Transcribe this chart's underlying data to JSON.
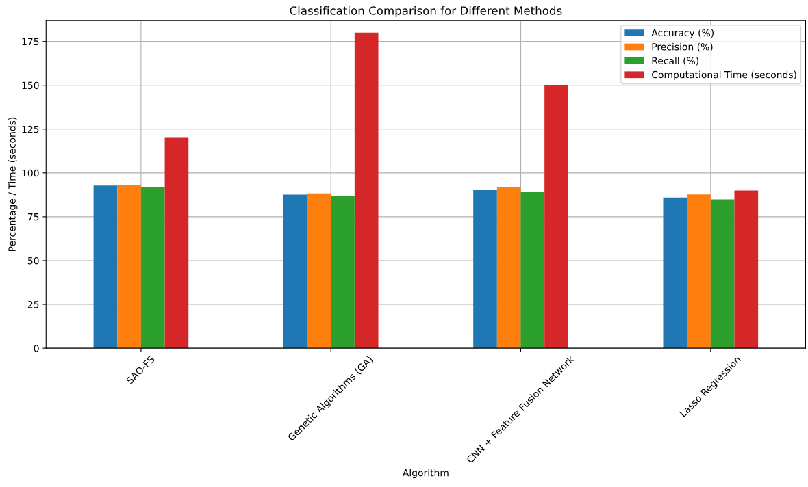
{
  "chart_data": {
    "type": "bar",
    "title": "Classification Comparison for Different Methods",
    "xlabel": "Algorithm",
    "ylabel": "Percentage / Time (seconds)",
    "categories": [
      "SAO-FS",
      "Genetic Algorithms (GA)",
      "CNN + Feature Fusion Network",
      "Lasso Regression"
    ],
    "series": [
      {
        "name": "Accuracy (%)",
        "color": "#1f77b4",
        "values": [
          92.8,
          87.6,
          90.2,
          86.0
        ]
      },
      {
        "name": "Precision (%)",
        "color": "#ff7f0e",
        "values": [
          93.2,
          88.3,
          91.8,
          87.7
        ]
      },
      {
        "name": "Recall (%)",
        "color": "#2ca02c",
        "values": [
          92.0,
          86.8,
          89.1,
          84.9
        ]
      },
      {
        "name": "Computational Time (seconds)",
        "color": "#d62728",
        "values": [
          120,
          180,
          150,
          90
        ]
      }
    ],
    "ylim": [
      0,
      187
    ],
    "yticks": [
      0,
      25,
      50,
      75,
      100,
      125,
      150,
      175
    ],
    "grid": true,
    "legend": "top right"
  }
}
